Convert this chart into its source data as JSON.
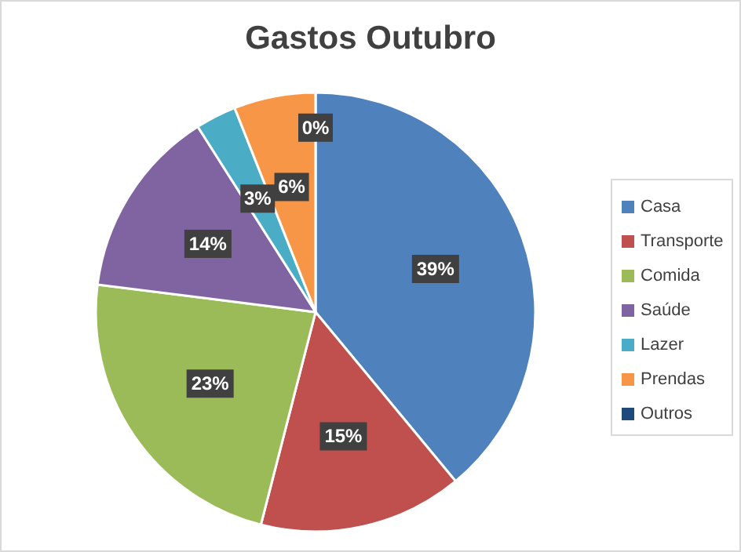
{
  "chart_data": {
    "type": "pie",
    "title": "Gastos Outubro",
    "categories": [
      "Casa",
      "Transporte",
      "Comida",
      "Saúde",
      "Lazer",
      "Prendas",
      "Outros"
    ],
    "values": [
      39,
      15,
      23,
      14,
      3,
      6,
      0
    ],
    "value_labels": [
      "39%",
      "15%",
      "23%",
      "14%",
      "3%",
      "6%",
      "0%"
    ],
    "colors": [
      "#4f81bd",
      "#c0504d",
      "#9bbb59",
      "#8064a2",
      "#4bacc6",
      "#f79646",
      "#1f497d"
    ],
    "legend": "right"
  }
}
